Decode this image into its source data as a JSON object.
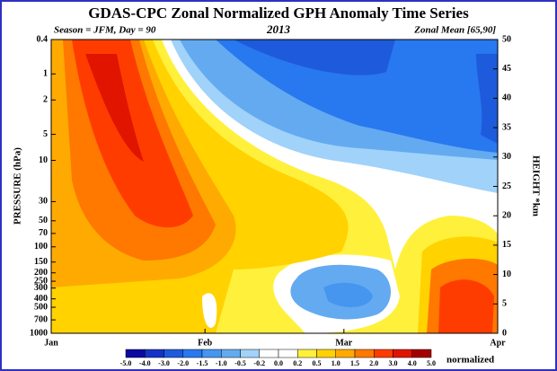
{
  "chart_data": {
    "type": "contour",
    "title": "GDAS-CPC Zonal Normalized GPH Anomaly Time Series",
    "subtitle_left": "Season = JFM, Day =  90",
    "subtitle_center": "2013",
    "subtitle_right": "Zonal Mean [65,90]",
    "ylabel": "PRESSURE (hPa)",
    "y2label": "HEIGHT *km",
    "xlim": [
      1,
      91
    ],
    "xticks": [
      {
        "value": 1,
        "label": "Jan"
      },
      {
        "value": 32,
        "label": "Feb"
      },
      {
        "value": 60,
        "label": "Mar"
      },
      {
        "value": 91,
        "label": "Apr"
      }
    ],
    "ylim": [
      1000,
      0.4
    ],
    "log_y": true,
    "yticks": [
      0.4,
      1,
      2,
      5,
      10,
      30,
      50,
      70,
      100,
      150,
      200,
      250,
      300,
      400,
      500,
      700,
      1000
    ],
    "y2lim": [
      0,
      50
    ],
    "y2ticks": [
      0,
      5,
      10,
      15,
      20,
      25,
      30,
      35,
      40,
      45,
      50
    ],
    "colorbar": {
      "label": "normalized",
      "levels": [
        {
          "value": -5,
          "label": "-5.0"
        },
        {
          "value": -4,
          "label": "-4.0"
        },
        {
          "value": -3,
          "label": "-3.0"
        },
        {
          "value": -2,
          "label": "-2.0"
        },
        {
          "value": -1.5,
          "label": "-1.5"
        },
        {
          "value": -1,
          "label": "-1.0"
        },
        {
          "value": -0.5,
          "label": "-0.5"
        },
        {
          "value": -0.2,
          "label": "-0.2"
        },
        {
          "value": 0,
          "label": "0.0"
        },
        {
          "value": 0.2,
          "label": "0.2"
        },
        {
          "value": 0.5,
          "label": "0.5"
        },
        {
          "value": 1,
          "label": "1.0"
        },
        {
          "value": 1.5,
          "label": "1.5"
        },
        {
          "value": 2,
          "label": "2.0"
        },
        {
          "value": 3,
          "label": "3.0"
        },
        {
          "value": 4,
          "label": "4.0"
        },
        {
          "value": 5,
          "label": "5.0"
        }
      ],
      "colors": [
        "#0a0aa0",
        "#1432c8",
        "#1e5adc",
        "#2878f0",
        "#4696f0",
        "#64aaf0",
        "#a0d2fa",
        "#ffffff",
        "#ffffff",
        "#fff03c",
        "#ffd200",
        "#ffaa00",
        "#ff7800",
        "#ff3c00",
        "#e11400",
        "#a50000"
      ]
    }
  }
}
